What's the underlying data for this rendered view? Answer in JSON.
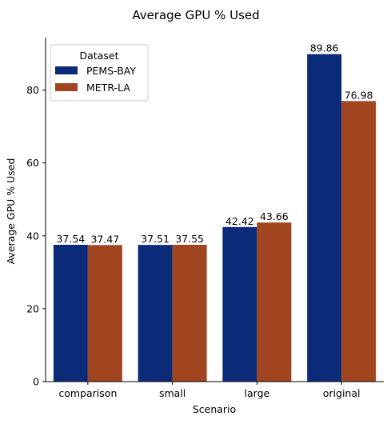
{
  "chart_data": {
    "type": "bar",
    "title": "Average GPU % Used",
    "xlabel": "Scenario",
    "ylabel": "Average GPU % Used",
    "categories": [
      "comparison",
      "small",
      "large",
      "original"
    ],
    "series": [
      {
        "name": "PEMS-BAY",
        "color": "#0b2a78",
        "values": [
          37.54,
          37.51,
          42.42,
          89.86
        ]
      },
      {
        "name": "METR-LA",
        "color": "#a04520",
        "values": [
          37.47,
          37.55,
          43.66,
          76.98
        ]
      }
    ],
    "data_labels": {
      "PEMS-BAY": [
        "37.54",
        "37.51",
        "42.42",
        "89.86"
      ],
      "METR-LA": [
        "37.47",
        "37.55",
        "43.66",
        "76.98"
      ]
    },
    "yticks": [
      0,
      20,
      40,
      60,
      80
    ],
    "ytick_labels": [
      "0",
      "20",
      "40",
      "60",
      "80"
    ],
    "ylim": [
      0,
      94.4
    ],
    "legend": {
      "title": "Dataset",
      "placement": "top-left"
    },
    "grid": false
  }
}
